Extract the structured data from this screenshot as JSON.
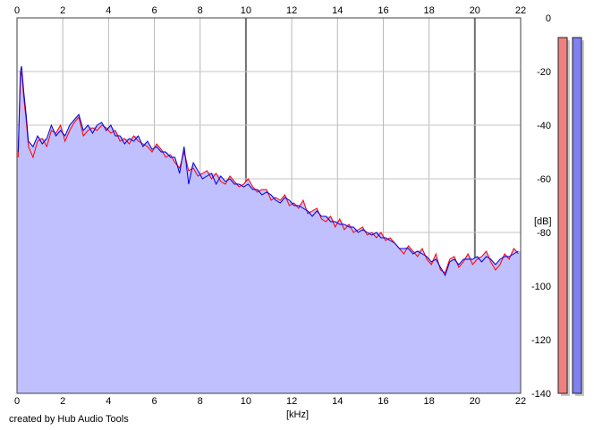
{
  "app": {
    "footer": "created by Hub Audio Tools"
  },
  "chart_data": {
    "type": "area",
    "xlabel": "[kHz]",
    "ylabel": "[dB]",
    "xlim": [
      0,
      22
    ],
    "ylim": [
      -140,
      0
    ],
    "x_ticks": [
      0,
      2,
      4,
      6,
      8,
      10,
      12,
      14,
      16,
      18,
      20,
      22
    ],
    "y_ticks": [
      0,
      -20,
      -40,
      -60,
      -80,
      -100,
      -120,
      -140
    ],
    "grid": true,
    "legend": "none",
    "fill_color": "#c0c0ff",
    "series": [
      {
        "color": "#ff0000",
        "x": [
          0.05,
          0.15,
          0.2,
          0.3,
          0.4,
          0.5,
          0.7,
          0.9,
          1.1,
          1.3,
          1.5,
          1.7,
          1.9,
          2.1,
          2.3,
          2.5,
          2.7,
          2.9,
          3.1,
          3.3,
          3.5,
          3.7,
          3.9,
          4.1,
          4.3,
          4.5,
          4.7,
          4.9,
          5.1,
          5.3,
          5.5,
          5.7,
          5.9,
          6.1,
          6.3,
          6.5,
          6.7,
          6.9,
          7.1,
          7.3,
          7.5,
          7.7,
          7.9,
          8.1,
          8.3,
          8.5,
          8.7,
          8.9,
          9.1,
          9.3,
          9.5,
          9.7,
          9.9,
          10.1,
          10.3,
          10.5,
          10.7,
          10.9,
          11.1,
          11.3,
          11.5,
          11.7,
          11.9,
          12.1,
          12.3,
          12.5,
          12.7,
          12.9,
          13.1,
          13.3,
          13.5,
          13.7,
          13.9,
          14.1,
          14.3,
          14.5,
          14.7,
          14.9,
          15.1,
          15.3,
          15.5,
          15.7,
          15.9,
          16.1,
          16.3,
          16.5,
          16.7,
          16.9,
          17.1,
          17.3,
          17.5,
          17.7,
          17.9,
          18.1,
          18.3,
          18.5,
          18.7,
          18.9,
          19.1,
          19.3,
          19.5,
          19.7,
          19.9,
          20.1,
          20.3,
          20.5,
          20.7,
          20.9,
          21.1,
          21.3,
          21.5,
          21.7,
          21.9
        ],
        "y": [
          -52,
          -22,
          -20,
          -30,
          -38,
          -48,
          -52,
          -46,
          -45,
          -48,
          -42,
          -43,
          -40,
          -46,
          -42,
          -39,
          -37,
          -44,
          -42,
          -41,
          -42,
          -40,
          -41,
          -43,
          -42,
          -46,
          -45,
          -47,
          -44,
          -46,
          -47,
          -48,
          -50,
          -47,
          -49,
          -52,
          -51,
          -54,
          -56,
          -50,
          -57,
          -56,
          -59,
          -58,
          -57,
          -60,
          -58,
          -61,
          -62,
          -59,
          -61,
          -63,
          -62,
          -60,
          -63,
          -65,
          -64,
          -64,
          -68,
          -67,
          -68,
          -66,
          -70,
          -69,
          -71,
          -68,
          -73,
          -72,
          -71,
          -75,
          -76,
          -74,
          -78,
          -75,
          -79,
          -77,
          -80,
          -79,
          -78,
          -81,
          -80,
          -82,
          -80,
          -83,
          -82,
          -84,
          -86,
          -88,
          -85,
          -87,
          -89,
          -86,
          -90,
          -92,
          -88,
          -94,
          -95,
          -90,
          -89,
          -93,
          -91,
          -88,
          -92,
          -90,
          -89,
          -87,
          -91,
          -94,
          -92,
          -88,
          -90,
          -86,
          -88
        ]
      },
      {
        "color": "#0000dd",
        "x": [
          0.05,
          0.15,
          0.2,
          0.3,
          0.4,
          0.5,
          0.7,
          0.9,
          1.1,
          1.3,
          1.5,
          1.7,
          1.9,
          2.1,
          2.3,
          2.5,
          2.7,
          2.9,
          3.1,
          3.3,
          3.5,
          3.7,
          3.9,
          4.1,
          4.3,
          4.5,
          4.7,
          4.9,
          5.1,
          5.3,
          5.5,
          5.7,
          5.9,
          6.1,
          6.3,
          6.5,
          6.7,
          6.9,
          7.1,
          7.3,
          7.5,
          7.7,
          7.9,
          8.1,
          8.3,
          8.5,
          8.7,
          8.9,
          9.1,
          9.3,
          9.5,
          9.7,
          9.9,
          10.1,
          10.3,
          10.5,
          10.7,
          10.9,
          11.1,
          11.3,
          11.5,
          11.7,
          11.9,
          12.1,
          12.3,
          12.5,
          12.7,
          12.9,
          13.1,
          13.3,
          13.5,
          13.7,
          13.9,
          14.1,
          14.3,
          14.5,
          14.7,
          14.9,
          15.1,
          15.3,
          15.5,
          15.7,
          15.9,
          16.1,
          16.3,
          16.5,
          16.7,
          16.9,
          17.1,
          17.3,
          17.5,
          17.7,
          17.9,
          18.1,
          18.3,
          18.5,
          18.7,
          18.9,
          19.1,
          19.3,
          19.5,
          19.7,
          19.9,
          20.1,
          20.3,
          20.5,
          20.7,
          20.9,
          21.1,
          21.3,
          21.5,
          21.7,
          21.9
        ],
        "y": [
          -50,
          -20,
          -18,
          -28,
          -36,
          -46,
          -48,
          -44,
          -47,
          -45,
          -40,
          -44,
          -42,
          -44,
          -40,
          -38,
          -36,
          -42,
          -40,
          -43,
          -40,
          -39,
          -42,
          -40,
          -44,
          -44,
          -47,
          -45,
          -46,
          -44,
          -48,
          -46,
          -49,
          -48,
          -50,
          -50,
          -52,
          -52,
          -58,
          -48,
          -62,
          -54,
          -57,
          -60,
          -59,
          -58,
          -62,
          -59,
          -61,
          -60,
          -62,
          -62,
          -63,
          -62,
          -64,
          -64,
          -66,
          -65,
          -66,
          -68,
          -69,
          -67,
          -68,
          -70,
          -70,
          -71,
          -72,
          -74,
          -72,
          -74,
          -74,
          -76,
          -76,
          -77,
          -77,
          -78,
          -78,
          -80,
          -79,
          -80,
          -81,
          -80,
          -82,
          -82,
          -83,
          -84,
          -86,
          -86,
          -86,
          -88,
          -87,
          -88,
          -89,
          -91,
          -90,
          -93,
          -96,
          -91,
          -90,
          -92,
          -90,
          -90,
          -90,
          -89,
          -91,
          -89,
          -90,
          -92,
          -90,
          -89,
          -89,
          -88,
          -87
        ]
      }
    ],
    "level_meters": [
      {
        "color": "#f08080",
        "fill": 1.0
      },
      {
        "color": "#8080f0",
        "fill": 1.0
      }
    ]
  }
}
